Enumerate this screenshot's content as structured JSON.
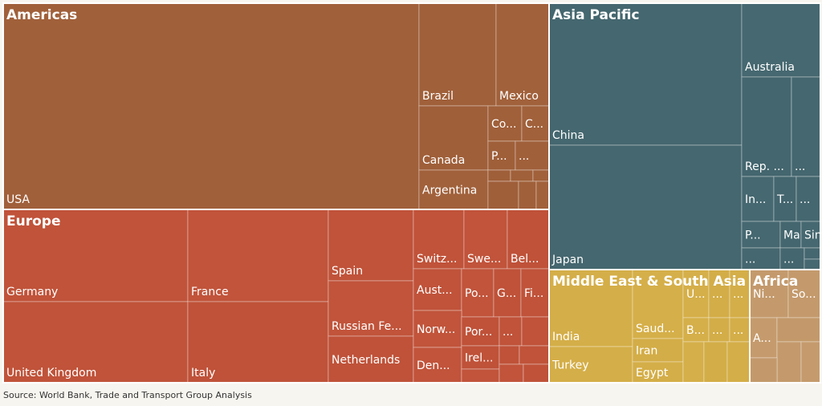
{
  "chart_data": {
    "type": "treemap",
    "source": "Source: World Bank, Trade and Transport Group Analysis",
    "groups": [
      {
        "name": "Americas",
        "color": "#a0603a",
        "items": [
          {
            "label": "USA"
          },
          {
            "label": "Brazil"
          },
          {
            "label": "Mexico"
          },
          {
            "label": "Canada"
          },
          {
            "label": "Co..."
          },
          {
            "label": "C..."
          },
          {
            "label": "P..."
          },
          {
            "label": "..."
          },
          {
            "label": "Argentina"
          },
          {
            "label": ""
          },
          {
            "label": ""
          },
          {
            "label": ""
          },
          {
            "label": ""
          },
          {
            "label": ""
          },
          {
            "label": ""
          }
        ]
      },
      {
        "name": "Europe",
        "color": "#c0533a",
        "items": [
          {
            "label": "Germany"
          },
          {
            "label": "United Kingdom"
          },
          {
            "label": "France"
          },
          {
            "label": "Italy"
          },
          {
            "label": "Spain"
          },
          {
            "label": "Russian Fe..."
          },
          {
            "label": "Netherlands"
          },
          {
            "label": "Switz..."
          },
          {
            "label": "Swe..."
          },
          {
            "label": "Bel..."
          },
          {
            "label": "Aust..."
          },
          {
            "label": "Po..."
          },
          {
            "label": "G..."
          },
          {
            "label": "Fi..."
          },
          {
            "label": "Norw..."
          },
          {
            "label": "Por..."
          },
          {
            "label": "..."
          },
          {
            "label": "Den..."
          },
          {
            "label": "Irel..."
          },
          {
            "label": ""
          },
          {
            "label": ""
          },
          {
            "label": ""
          },
          {
            "label": ""
          },
          {
            "label": ""
          },
          {
            "label": ""
          }
        ]
      },
      {
        "name": "Asia Pacific",
        "color": "#45676f",
        "items": [
          {
            "label": "China"
          },
          {
            "label": "Japan"
          },
          {
            "label": "Australia"
          },
          {
            "label": "Rep. ..."
          },
          {
            "label": "..."
          },
          {
            "label": "In..."
          },
          {
            "label": "T..."
          },
          {
            "label": "..."
          },
          {
            "label": "P..."
          },
          {
            "label": "Mal..."
          },
          {
            "label": "..."
          },
          {
            "label": "Sin..."
          },
          {
            "label": "..."
          },
          {
            "label": ""
          },
          {
            "label": ""
          }
        ]
      },
      {
        "name": "Middle East & South Asia",
        "color": "#d4ae48",
        "items": [
          {
            "label": "India"
          },
          {
            "label": "Turkey"
          },
          {
            "label": "Saud..."
          },
          {
            "label": "Iran"
          },
          {
            "label": "Egypt"
          },
          {
            "label": "U..."
          },
          {
            "label": "..."
          },
          {
            "label": "..."
          },
          {
            "label": "B..."
          },
          {
            "label": "..."
          },
          {
            "label": "..."
          },
          {
            "label": ""
          },
          {
            "label": ""
          },
          {
            "label": ""
          }
        ]
      },
      {
        "name": "Africa",
        "color": "#c49a6c",
        "items": [
          {
            "label": "Ni..."
          },
          {
            "label": "So..."
          },
          {
            "label": "A..."
          },
          {
            "label": ""
          },
          {
            "label": ""
          },
          {
            "label": ""
          },
          {
            "label": ""
          }
        ]
      }
    ]
  }
}
